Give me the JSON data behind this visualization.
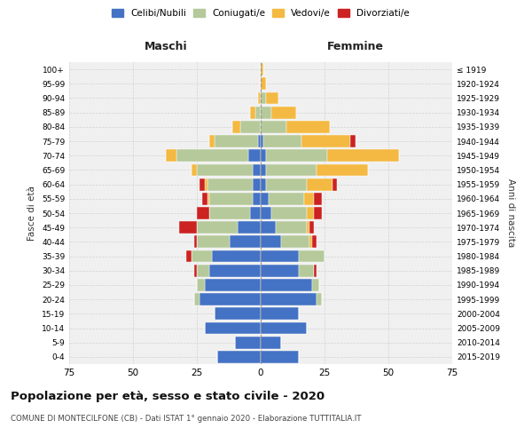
{
  "age_groups": [
    "0-4",
    "5-9",
    "10-14",
    "15-19",
    "20-24",
    "25-29",
    "30-34",
    "35-39",
    "40-44",
    "45-49",
    "50-54",
    "55-59",
    "60-64",
    "65-69",
    "70-74",
    "75-79",
    "80-84",
    "85-89",
    "90-94",
    "95-99",
    "100+"
  ],
  "birth_years": [
    "2015-2019",
    "2010-2014",
    "2005-2009",
    "2000-2004",
    "1995-1999",
    "1990-1994",
    "1985-1989",
    "1980-1984",
    "1975-1979",
    "1970-1974",
    "1965-1969",
    "1960-1964",
    "1955-1959",
    "1950-1954",
    "1945-1949",
    "1940-1944",
    "1935-1939",
    "1930-1934",
    "1925-1929",
    "1920-1924",
    "≤ 1919"
  ],
  "males": {
    "celibi": [
      17,
      10,
      22,
      18,
      24,
      22,
      20,
      19,
      12,
      9,
      4,
      3,
      3,
      3,
      5,
      1,
      0,
      0,
      0,
      0,
      0
    ],
    "coniugati": [
      0,
      0,
      0,
      0,
      2,
      3,
      5,
      8,
      13,
      16,
      16,
      17,
      18,
      22,
      28,
      17,
      8,
      2,
      0,
      0,
      0
    ],
    "vedovi": [
      0,
      0,
      0,
      0,
      0,
      0,
      0,
      0,
      0,
      0,
      0,
      1,
      1,
      2,
      4,
      2,
      3,
      2,
      1,
      0,
      0
    ],
    "divorziati": [
      0,
      0,
      0,
      0,
      0,
      0,
      1,
      2,
      1,
      7,
      5,
      2,
      2,
      0,
      0,
      0,
      0,
      0,
      0,
      0,
      0
    ]
  },
  "females": {
    "nubili": [
      15,
      8,
      18,
      15,
      22,
      20,
      15,
      15,
      8,
      6,
      4,
      3,
      2,
      2,
      2,
      1,
      0,
      0,
      0,
      0,
      0
    ],
    "coniugate": [
      0,
      0,
      0,
      0,
      2,
      3,
      6,
      10,
      11,
      12,
      14,
      14,
      16,
      20,
      24,
      15,
      10,
      4,
      2,
      0,
      0
    ],
    "vedove": [
      0,
      0,
      0,
      0,
      0,
      0,
      0,
      0,
      1,
      1,
      3,
      4,
      10,
      20,
      28,
      19,
      17,
      10,
      5,
      2,
      1
    ],
    "divorziate": [
      0,
      0,
      0,
      0,
      0,
      0,
      1,
      0,
      2,
      2,
      3,
      3,
      2,
      0,
      0,
      2,
      0,
      0,
      0,
      0,
      0
    ]
  },
  "colors": {
    "celibi": "#4472c4",
    "coniugati": "#b5c99a",
    "vedovi": "#f4b942",
    "divorziati": "#cc2222"
  },
  "xlim": 75,
  "title": "Popolazione per età, sesso e stato civile - 2020",
  "subtitle": "COMUNE DI MONTECILFONE (CB) - Dati ISTAT 1° gennaio 2020 - Elaborazione TUTTITALIA.IT",
  "ylabel_left": "Fasce di età",
  "ylabel_right": "Anni di nascita",
  "xlabel_left": "Maschi",
  "xlabel_right": "Femmine",
  "bg_color": "#f0f0f0",
  "grid_color": "#cccccc",
  "xticks": [
    -75,
    -50,
    -25,
    0,
    25,
    50,
    75
  ],
  "xticklabels": [
    "75",
    "50",
    "25",
    "0",
    "25",
    "50",
    "75"
  ]
}
